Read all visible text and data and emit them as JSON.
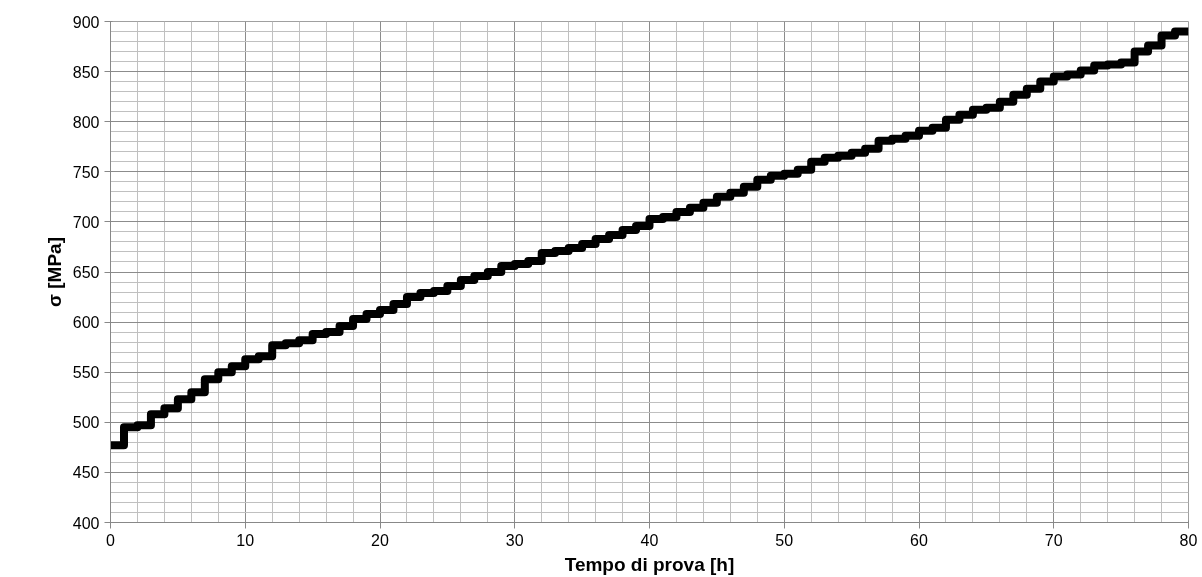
{
  "chart_data": {
    "type": "step",
    "xlabel": "Tempo di prova [h]",
    "ylabel": "σ [MPa]",
    "x": [
      0,
      1,
      2,
      3,
      4,
      5,
      6,
      7,
      8,
      9,
      10,
      11,
      12,
      13,
      14,
      15,
      16,
      17,
      18,
      19,
      20,
      21,
      22,
      23,
      24,
      25,
      26,
      27,
      28,
      29,
      30,
      31,
      32,
      33,
      34,
      35,
      36,
      37,
      38,
      39,
      40,
      41,
      42,
      43,
      44,
      45,
      46,
      47,
      48,
      49,
      50,
      51,
      52,
      53,
      54,
      55,
      56,
      57,
      58,
      59,
      60,
      61,
      62,
      63,
      64,
      65,
      66,
      67,
      68,
      69,
      70,
      71,
      72,
      73,
      74,
      75,
      76,
      77,
      78,
      79,
      80
    ],
    "series": [
      {
        "color": "#000000",
        "values": [
          477,
          495,
          497,
          508,
          514,
          523,
          530,
          543,
          550,
          556,
          563,
          566,
          577,
          579,
          582,
          588,
          590,
          596,
          603,
          608,
          612,
          618,
          625,
          629,
          631,
          636,
          642,
          646,
          650,
          656,
          658,
          661,
          669,
          671,
          674,
          678,
          683,
          687,
          692,
          696,
          703,
          705,
          710,
          714,
          719,
          725,
          729,
          735,
          742,
          746,
          748,
          752,
          760,
          764,
          766,
          769,
          773,
          781,
          783,
          786,
          791,
          794,
          802,
          807,
          812,
          814,
          820,
          827,
          833,
          840,
          845,
          847,
          851,
          856,
          857,
          859,
          870,
          876,
          886,
          890,
          890
        ]
      }
    ],
    "xlim": [
      0,
      80
    ],
    "xticks": [
      0,
      10,
      20,
      30,
      40,
      50,
      60,
      70,
      80
    ],
    "ylim": [
      400,
      900
    ],
    "yticks": [
      400,
      450,
      500,
      550,
      600,
      650,
      700,
      750,
      800,
      850,
      900
    ],
    "grid": true,
    "marker": "none",
    "line_style": "solid"
  }
}
